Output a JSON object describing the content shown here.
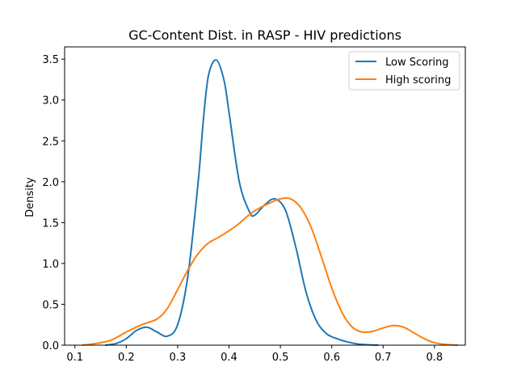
{
  "chart_data": {
    "type": "line",
    "title": "GC-Content Dist. in RASP - HIV predictions",
    "xlabel": "",
    "ylabel": "Density",
    "xlim": [
      0.08,
      0.86
    ],
    "ylim": [
      0,
      3.65
    ],
    "xticks": [
      0.1,
      0.2,
      0.3,
      0.4,
      0.5,
      0.6,
      0.7,
      0.8
    ],
    "xtick_labels": [
      "0.1",
      "0.2",
      "0.3",
      "0.4",
      "0.5",
      "0.6",
      "0.7",
      "0.8"
    ],
    "yticks": [
      0.0,
      0.5,
      1.0,
      1.5,
      2.0,
      2.5,
      3.0,
      3.5
    ],
    "ytick_labels": [
      "0.0",
      "0.5",
      "1.0",
      "1.5",
      "2.0",
      "2.5",
      "3.0",
      "3.5"
    ],
    "grid": false,
    "legend_position": "top-right",
    "series": [
      {
        "name": "Low Scoring",
        "color": "#1f77b4",
        "points": [
          [
            0.16,
            0.0
          ],
          [
            0.18,
            0.02
          ],
          [
            0.2,
            0.08
          ],
          [
            0.22,
            0.18
          ],
          [
            0.24,
            0.22
          ],
          [
            0.26,
            0.16
          ],
          [
            0.28,
            0.11
          ],
          [
            0.3,
            0.25
          ],
          [
            0.32,
            0.85
          ],
          [
            0.34,
            2.0
          ],
          [
            0.35,
            2.75
          ],
          [
            0.36,
            3.3
          ],
          [
            0.375,
            3.49
          ],
          [
            0.39,
            3.25
          ],
          [
            0.4,
            2.85
          ],
          [
            0.42,
            2.0
          ],
          [
            0.44,
            1.63
          ],
          [
            0.45,
            1.59
          ],
          [
            0.47,
            1.72
          ],
          [
            0.49,
            1.79
          ],
          [
            0.51,
            1.65
          ],
          [
            0.53,
            1.2
          ],
          [
            0.55,
            0.65
          ],
          [
            0.57,
            0.3
          ],
          [
            0.59,
            0.14
          ],
          [
            0.61,
            0.08
          ],
          [
            0.63,
            0.04
          ],
          [
            0.65,
            0.015
          ],
          [
            0.67,
            0.005
          ],
          [
            0.69,
            0.0
          ]
        ]
      },
      {
        "name": "High scoring",
        "color": "#ff7f0e",
        "points": [
          [
            0.115,
            0.0
          ],
          [
            0.14,
            0.02
          ],
          [
            0.17,
            0.06
          ],
          [
            0.2,
            0.16
          ],
          [
            0.23,
            0.25
          ],
          [
            0.26,
            0.32
          ],
          [
            0.28,
            0.45
          ],
          [
            0.3,
            0.68
          ],
          [
            0.32,
            0.92
          ],
          [
            0.34,
            1.12
          ],
          [
            0.36,
            1.25
          ],
          [
            0.38,
            1.32
          ],
          [
            0.4,
            1.4
          ],
          [
            0.42,
            1.49
          ],
          [
            0.44,
            1.6
          ],
          [
            0.46,
            1.68
          ],
          [
            0.48,
            1.74
          ],
          [
            0.5,
            1.79
          ],
          [
            0.52,
            1.79
          ],
          [
            0.54,
            1.68
          ],
          [
            0.56,
            1.44
          ],
          [
            0.58,
            1.08
          ],
          [
            0.6,
            0.7
          ],
          [
            0.62,
            0.4
          ],
          [
            0.64,
            0.22
          ],
          [
            0.66,
            0.16
          ],
          [
            0.68,
            0.17
          ],
          [
            0.7,
            0.21
          ],
          [
            0.72,
            0.24
          ],
          [
            0.74,
            0.22
          ],
          [
            0.76,
            0.15
          ],
          [
            0.78,
            0.08
          ],
          [
            0.8,
            0.03
          ],
          [
            0.82,
            0.01
          ],
          [
            0.845,
            0.0
          ]
        ]
      }
    ]
  }
}
